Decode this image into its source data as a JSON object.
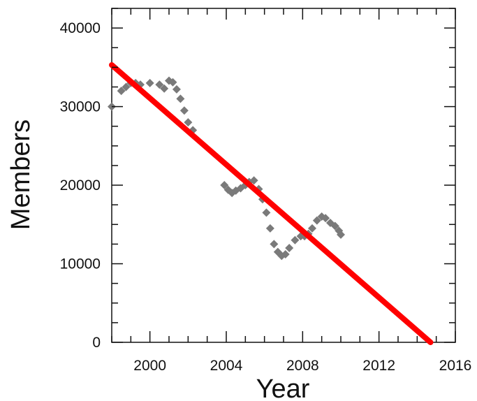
{
  "chart_data": {
    "type": "scatter",
    "title": "",
    "xlabel": "Year",
    "ylabel": "Members",
    "xlim": [
      1998,
      2016
    ],
    "ylim": [
      0,
      42500
    ],
    "xticks": [
      2000,
      2004,
      2008,
      2012,
      2016
    ],
    "yticks": [
      0,
      10000,
      20000,
      30000,
      40000
    ],
    "xtick_labels": [
      "2000",
      "2004",
      "2008",
      "2012",
      "2016"
    ],
    "ytick_labels": [
      "0",
      "10000",
      "20000",
      "30000",
      "40000"
    ],
    "grid": false,
    "legend": "none",
    "series": [
      {
        "kind": "points",
        "color": "#7a7a7a",
        "marker": "diamond",
        "points": [
          [
            1998.0,
            30000
          ],
          [
            1998.5,
            32000
          ],
          [
            1998.75,
            32500
          ],
          [
            1999.0,
            33000
          ],
          [
            1999.25,
            33000
          ],
          [
            1999.5,
            32800
          ],
          [
            2000.0,
            33000
          ],
          [
            2000.5,
            32800
          ],
          [
            2000.75,
            32300
          ],
          [
            2001.0,
            33300
          ],
          [
            2001.2,
            33100
          ],
          [
            2001.4,
            32200
          ],
          [
            2001.6,
            31000
          ],
          [
            2001.8,
            29500
          ],
          [
            2002.0,
            28000
          ],
          [
            2002.25,
            27000
          ],
          [
            2003.9,
            20000
          ],
          [
            2004.1,
            19400
          ],
          [
            2004.3,
            19000
          ],
          [
            2004.5,
            19300
          ],
          [
            2004.75,
            19600
          ],
          [
            2005.0,
            20000
          ],
          [
            2005.2,
            20400
          ],
          [
            2005.45,
            20600
          ],
          [
            2005.7,
            19500
          ],
          [
            2005.9,
            18200
          ],
          [
            2006.1,
            16500
          ],
          [
            2006.3,
            14500
          ],
          [
            2006.5,
            12500
          ],
          [
            2006.7,
            11500
          ],
          [
            2006.9,
            11000
          ],
          [
            2007.1,
            11200
          ],
          [
            2007.3,
            12000
          ],
          [
            2007.6,
            13000
          ],
          [
            2007.9,
            13500
          ],
          [
            2008.1,
            13500
          ],
          [
            2008.3,
            13800
          ],
          [
            2008.5,
            14500
          ],
          [
            2008.75,
            15500
          ],
          [
            2009.0,
            16000
          ],
          [
            2009.2,
            15800
          ],
          [
            2009.45,
            15200
          ],
          [
            2009.7,
            14800
          ],
          [
            2009.9,
            14200
          ],
          [
            2010.0,
            13700
          ]
        ]
      },
      {
        "kind": "line",
        "color": "#ff0000",
        "points": [
          [
            1998.0,
            35300
          ],
          [
            2014.7,
            0
          ]
        ]
      }
    ]
  }
}
